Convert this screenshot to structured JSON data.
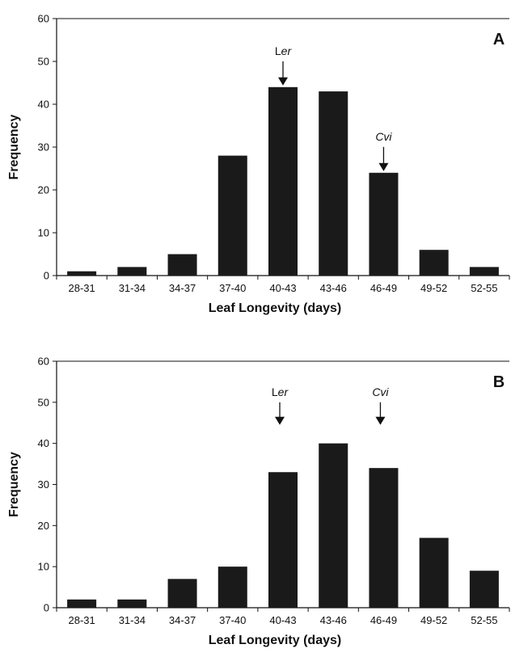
{
  "chart_data": [
    {
      "type": "bar",
      "panel_label": "A",
      "categories": [
        "28-31",
        "31-34",
        "34-37",
        "37-40",
        "40-43",
        "43-46",
        "46-49",
        "49-52",
        "52-55"
      ],
      "values": [
        1,
        2,
        5,
        28,
        44,
        43,
        24,
        6,
        2
      ],
      "xlabel": "Leaf Longevity (days)",
      "ylabel": "Frequency",
      "ylim": [
        0,
        60
      ],
      "yticks": [
        0,
        10,
        20,
        30,
        40,
        50,
        60
      ],
      "grid": false,
      "color": "#1a1a1a",
      "annotations": [
        {
          "text_plain": "L",
          "text_italic": "er",
          "category": "40-43"
        },
        {
          "text_plain": "",
          "text_italic": "Cvi",
          "category": "46-49"
        }
      ]
    },
    {
      "type": "bar",
      "panel_label": "B",
      "categories": [
        "28-31",
        "31-34",
        "34-37",
        "37-40",
        "40-43",
        "43-46",
        "46-49",
        "49-52",
        "52-55"
      ],
      "values": [
        2,
        2,
        7,
        10,
        33,
        40,
        34,
        17,
        9
      ],
      "xlabel": "Leaf Longevity (days)",
      "ylabel": "Frequency",
      "ylim": [
        0,
        60
      ],
      "yticks": [
        0,
        10,
        20,
        30,
        40,
        50,
        60
      ],
      "grid": false,
      "color": "#1a1a1a",
      "annotations": [
        {
          "text_plain": "L",
          "text_italic": "er",
          "category": "40-43"
        },
        {
          "text_plain": "",
          "text_italic": "Cvi",
          "category": "46-49"
        }
      ]
    }
  ]
}
